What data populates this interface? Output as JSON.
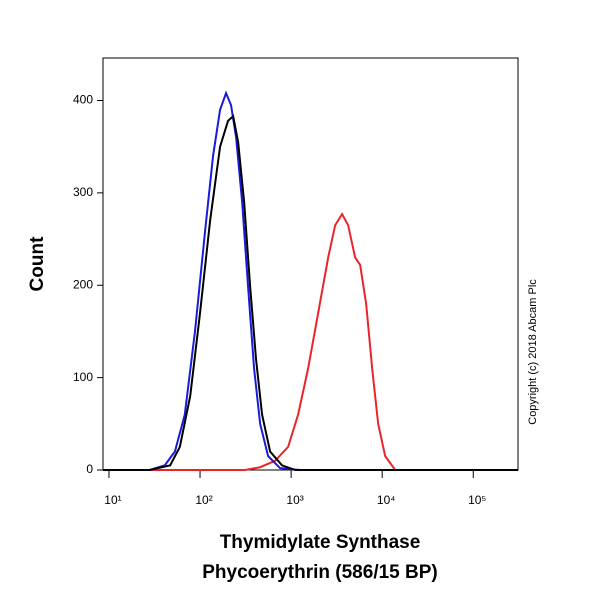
{
  "chart_data": {
    "type": "line",
    "y_label": "Count",
    "x_label": [
      "Thymidylate Synthase",
      "Phycoerythrin (586/15 BP)"
    ],
    "copyright": "Copyright (c) 2018 Abcam Plc",
    "x_scale": "log",
    "xlim": [
      8.6,
      310000
    ],
    "ylim": [
      0,
      446
    ],
    "xticks": [
      {
        "value": 10,
        "label": "10¹"
      },
      {
        "value": 100,
        "label": "10²"
      },
      {
        "value": 1000,
        "label": "10³"
      },
      {
        "value": 10000,
        "label": "10⁴"
      },
      {
        "value": 100000,
        "label": "10⁵"
      }
    ],
    "yticks": [
      0,
      100,
      200,
      300,
      400
    ],
    "series": [
      {
        "color": "#e8262a",
        "x": [
          8.6,
          312,
          457,
          667,
          927,
          1194,
          1538,
          1982,
          2552,
          3048,
          3631,
          4227,
          5047,
          5728,
          6668,
          7762,
          9036,
          10790,
          13900,
          310000
        ],
        "values": [
          0,
          0,
          3,
          10,
          25,
          60,
          110,
          170,
          230,
          265,
          277,
          265,
          230,
          222,
          180,
          110,
          50,
          15,
          0,
          0
        ]
      },
      {
        "color": "#1a1adc",
        "x": [
          8.6,
          28,
          41,
          53,
          68,
          88,
          114,
          139,
          166,
          193,
          219,
          249,
          290,
          336,
          392,
          457,
          559,
          757,
          1259,
          310000
        ],
        "values": [
          0,
          0,
          5,
          20,
          60,
          150,
          260,
          340,
          390,
          408,
          395,
          360,
          290,
          200,
          110,
          50,
          15,
          2,
          0,
          0
        ]
      },
      {
        "color": "#000000",
        "x": [
          8.6,
          28,
          47,
          60,
          78,
          100,
          129,
          166,
          203,
          231,
          262,
          305,
          354,
          412,
          480,
          588,
          796,
          1107,
          310000
        ],
        "values": [
          0,
          0,
          5,
          25,
          80,
          170,
          270,
          350,
          378,
          383,
          355,
          290,
          200,
          120,
          60,
          20,
          5,
          0,
          0
        ]
      }
    ]
  }
}
